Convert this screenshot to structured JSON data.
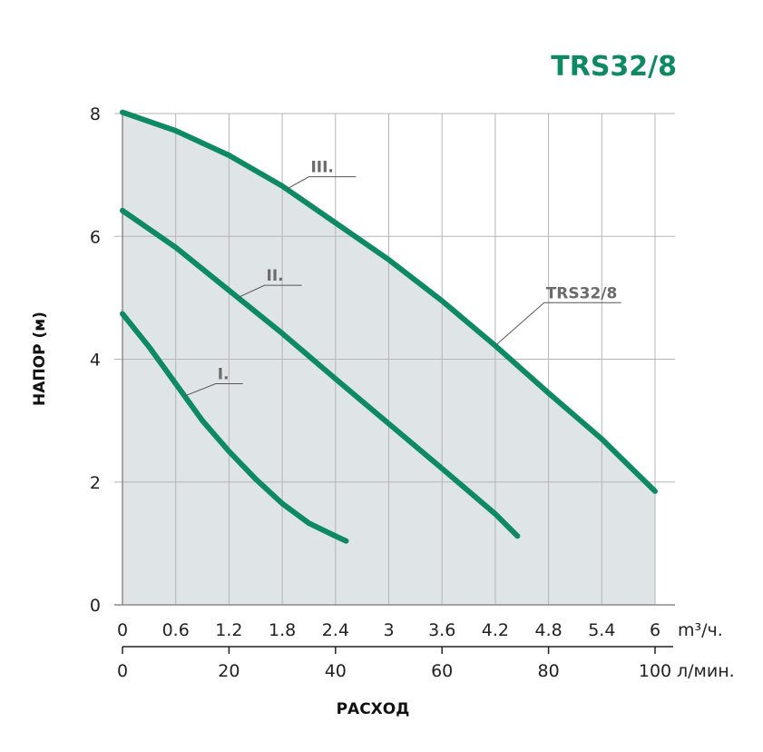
{
  "chart_data": {
    "type": "line",
    "title": "TRS32/8",
    "ylabel": "НАПОР (м)",
    "xlabel": "РАСХОД",
    "x_unit_primary": "m³/ч.",
    "x_unit_secondary": "л/мин.",
    "xlim": [
      0,
      6
    ],
    "ylim": [
      0,
      8
    ],
    "x_ticks": [
      "0",
      "0.6",
      "1.2",
      "1.8",
      "2.4",
      "3",
      "3.6",
      "4.2",
      "4.8",
      "5.4",
      "6"
    ],
    "x_ticks_secondary": [
      "0",
      "20",
      "40",
      "60",
      "80",
      "100"
    ],
    "y_ticks": [
      "0",
      "2",
      "4",
      "6",
      "8"
    ],
    "grid": true,
    "colors": {
      "curve": "#0d8a63",
      "title": "#0d8a63",
      "fill": "#dfe4e6",
      "grid": "#b5b5b5",
      "annotation": "#6b6b6b"
    },
    "series": [
      {
        "name": "I.",
        "x": [
          0,
          0.3,
          0.6,
          0.9,
          1.2,
          1.5,
          1.8,
          2.1,
          2.4,
          2.52
        ],
        "y": [
          4.74,
          4.2,
          3.6,
          3.0,
          2.5,
          2.05,
          1.65,
          1.33,
          1.12,
          1.04
        ]
      },
      {
        "name": "II.",
        "x": [
          0,
          0.6,
          1.2,
          1.8,
          2.4,
          3.0,
          3.6,
          4.2,
          4.45
        ],
        "y": [
          6.42,
          5.82,
          5.12,
          4.42,
          3.68,
          2.95,
          2.22,
          1.48,
          1.12
        ]
      },
      {
        "name": "III.",
        "x": [
          0,
          0.6,
          1.2,
          1.8,
          2.4,
          3.0,
          3.6,
          4.2,
          4.8,
          5.4,
          6.0
        ],
        "y": [
          8.02,
          7.72,
          7.32,
          6.82,
          6.22,
          5.62,
          4.95,
          4.22,
          3.45,
          2.7,
          1.85
        ]
      }
    ],
    "annotations": [
      {
        "text": "I.",
        "target_series": 0,
        "at_x": 0.7,
        "label_dx": 0.35,
        "label_dy": 0.2
      },
      {
        "text": "II.",
        "target_series": 1,
        "at_x": 1.3,
        "label_dx": 0.3,
        "label_dy": 0.2
      },
      {
        "text": "III.",
        "target_series": 2,
        "at_x": 1.85,
        "label_dx": 0.25,
        "label_dy": 0.2
      },
      {
        "text": "TRS32/8",
        "target_series": 2,
        "at_x": 4.2,
        "label_dx": 0.55,
        "label_dy": 0.7
      }
    ]
  }
}
